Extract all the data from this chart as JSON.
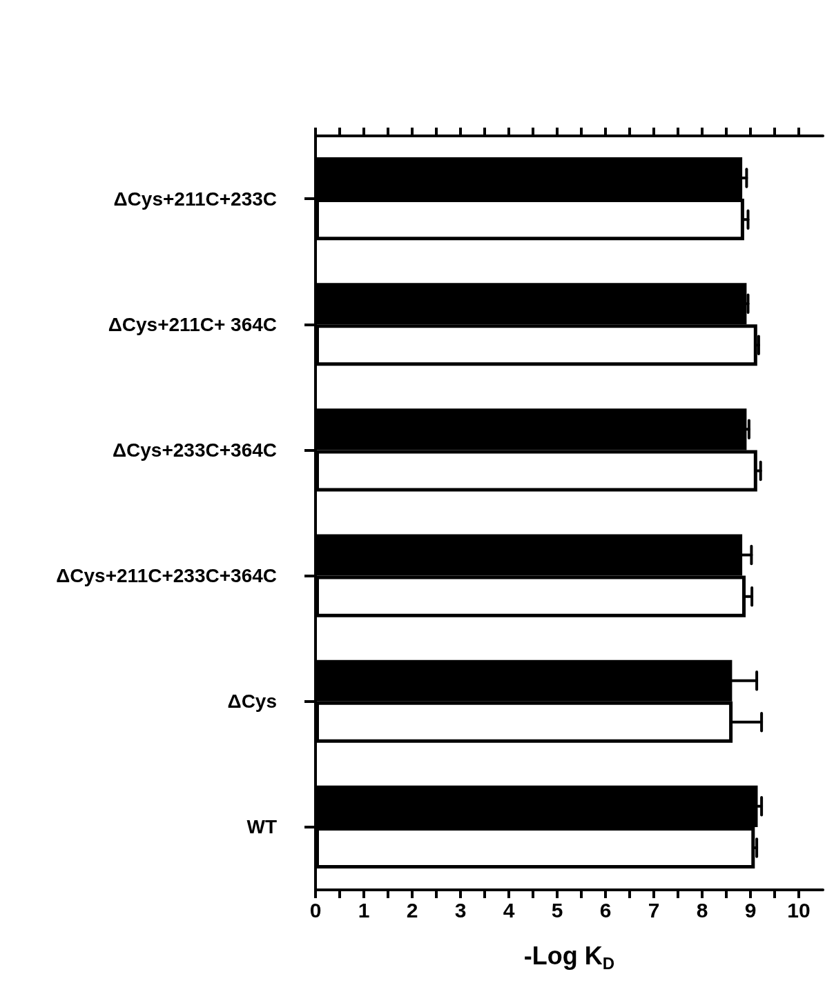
{
  "chart_data": {
    "type": "bar",
    "orientation": "horizontal",
    "xlabel": "-Log K$_{D}$",
    "categories": [
      "ΔCys+211C+233C",
      "ΔCys+211C+ 364C",
      "ΔCys+233C+364C",
      "ΔCys+211C+233C+364C",
      "ΔCys",
      "WT"
    ],
    "series": [
      {
        "color": "#000000",
        "values": [
          8.83,
          8.92,
          8.92,
          8.83,
          8.62,
          9.15
        ],
        "errors": [
          [
            8.83,
            8.92
          ],
          [
            8.92,
            8.95
          ],
          [
            8.92,
            8.97
          ],
          [
            8.83,
            9.02
          ],
          [
            8.62,
            9.13
          ],
          [
            9.15,
            9.23
          ]
        ]
      },
      {
        "color": "#ffffff",
        "values": [
          8.87,
          9.14,
          9.14,
          8.9,
          8.63,
          9.09
        ],
        "errors": [
          [
            8.87,
            8.95
          ],
          [
            9.14,
            9.17
          ],
          [
            9.14,
            9.21
          ],
          [
            8.9,
            9.03
          ],
          [
            8.63,
            9.23
          ],
          [
            9.09,
            9.13
          ]
        ]
      }
    ],
    "xlim": [
      0,
      10.5
    ],
    "xticks": [
      0,
      {
        "value": 0.5,
        "label": null
      },
      1,
      {
        "value": 1.5,
        "label": null
      },
      2,
      {
        "value": 2.5,
        "label": null
      },
      3,
      {
        "value": 3.5,
        "label": null
      },
      4,
      {
        "value": 4.5,
        "label": null
      },
      5,
      {
        "value": 5.5,
        "label": null
      },
      6,
      {
        "value": 6.5,
        "label": null
      },
      7,
      {
        "value": 7.5,
        "label": null
      },
      8,
      {
        "value": 8.5,
        "label": null
      },
      9,
      {
        "value": 9.5,
        "label": null
      },
      10
    ],
    "grid": false
  }
}
